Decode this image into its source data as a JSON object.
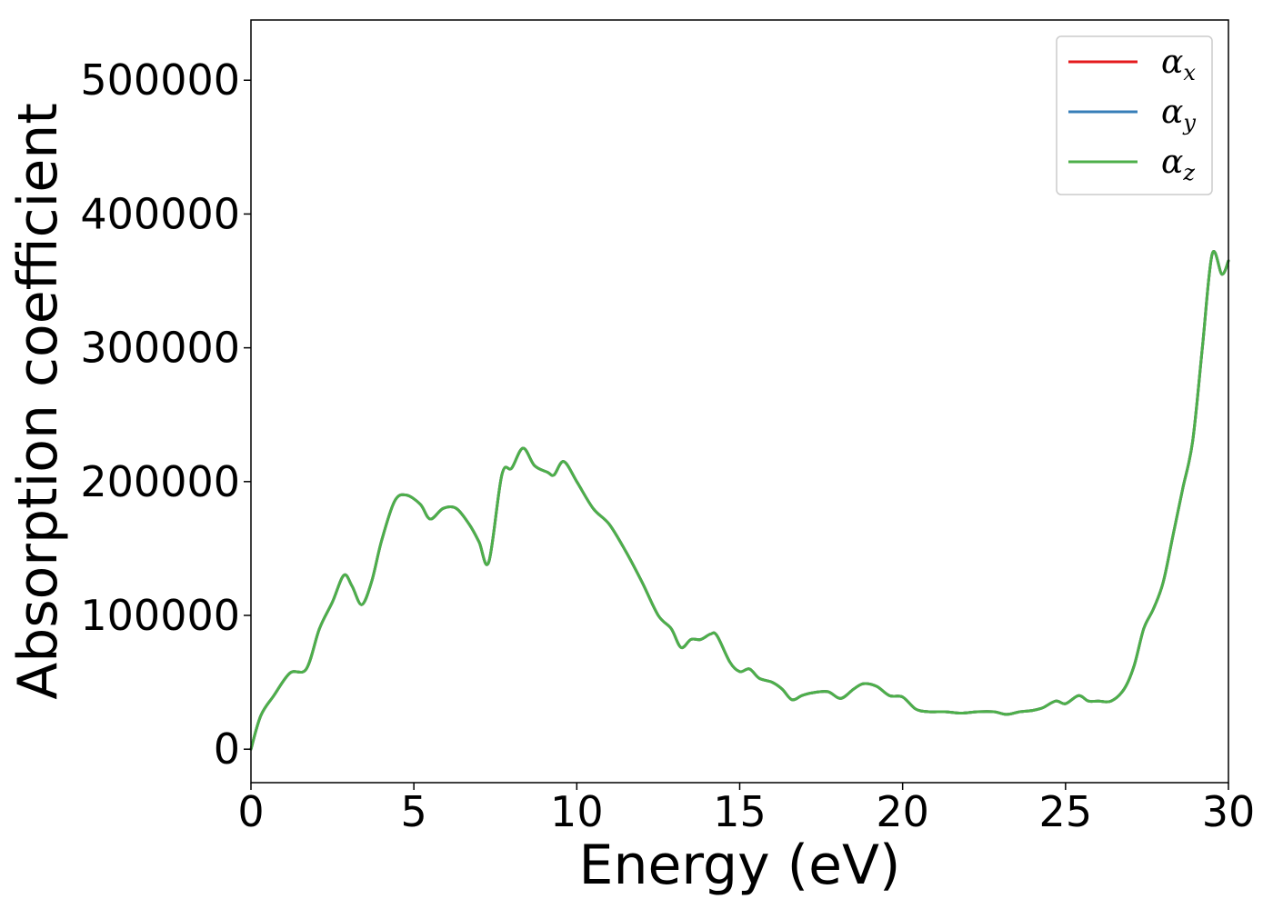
{
  "chart_data": {
    "type": "line",
    "title": "",
    "xlabel": "Energy (eV)",
    "ylabel": "Absorption coefficient",
    "xlim": [
      0,
      30
    ],
    "ylim": [
      -25000,
      545000
    ],
    "xticks": [
      0,
      5,
      10,
      15,
      20,
      25,
      30
    ],
    "xtick_labels": [
      "0",
      "5",
      "10",
      "15",
      "20",
      "25",
      "30"
    ],
    "yticks": [
      0,
      100000,
      200000,
      300000,
      400000,
      500000
    ],
    "ytick_labels": [
      "0",
      "100000",
      "200000",
      "300000",
      "400000",
      "500000"
    ],
    "grid": false,
    "legend_position": "top-right",
    "x": [
      0,
      0.3,
      0.7,
      1.2,
      1.7,
      2.1,
      2.5,
      2.85,
      3.1,
      3.4,
      3.7,
      4.0,
      4.4,
      4.75,
      5.2,
      5.5,
      5.9,
      6.3,
      6.7,
      7.0,
      7.3,
      7.7,
      8.0,
      8.35,
      8.7,
      9.1,
      9.3,
      9.6,
      10.0,
      10.5,
      11.0,
      11.5,
      12.0,
      12.5,
      12.9,
      13.2,
      13.5,
      13.8,
      14.1,
      14.3,
      14.7,
      15.0,
      15.3,
      15.6,
      16.0,
      16.3,
      16.6,
      16.9,
      17.2,
      17.7,
      18.1,
      18.5,
      18.8,
      19.2,
      19.6,
      20.0,
      20.4,
      20.8,
      21.3,
      21.8,
      22.3,
      22.8,
      23.2,
      23.6,
      24.0,
      24.3,
      24.7,
      25.0,
      25.4,
      25.7,
      26.0,
      26.4,
      26.8,
      27.1,
      27.4,
      27.7,
      28.0,
      28.3,
      28.6,
      28.9,
      29.2,
      29.5,
      29.8,
      30.0
    ],
    "series": [
      {
        "name": "αx",
        "label_base": "α",
        "label_sub": "x",
        "color": "#e41a1c",
        "values": [
          0,
          25000,
          40000,
          57000,
          60000,
          90000,
          110000,
          130000,
          122000,
          108000,
          125000,
          155000,
          185000,
          190000,
          183000,
          172000,
          180000,
          180000,
          168000,
          155000,
          140000,
          205000,
          210000,
          225000,
          212000,
          207000,
          205000,
          215000,
          200000,
          180000,
          168000,
          148000,
          125000,
          100000,
          90000,
          76000,
          82000,
          82000,
          86000,
          85000,
          65000,
          58000,
          60000,
          53000,
          50000,
          45000,
          37000,
          40000,
          42000,
          43000,
          38000,
          45000,
          49000,
          47000,
          40000,
          39000,
          30000,
          28000,
          28000,
          27000,
          28000,
          28000,
          26000,
          28000,
          29000,
          31000,
          36000,
          34000,
          40000,
          36000,
          36000,
          36000,
          45000,
          62000,
          90000,
          105000,
          125000,
          160000,
          195000,
          230000,
          300000,
          370000,
          355000,
          365000
        ]
      },
      {
        "name": "αy",
        "label_base": "α",
        "label_sub": "y",
        "color": "#377eb8",
        "values": [
          0,
          25000,
          40000,
          57000,
          60000,
          90000,
          110000,
          130000,
          122000,
          108000,
          125000,
          155000,
          185000,
          190000,
          183000,
          172000,
          180000,
          180000,
          168000,
          155000,
          140000,
          205000,
          210000,
          225000,
          212000,
          207000,
          205000,
          215000,
          200000,
          180000,
          168000,
          148000,
          125000,
          100000,
          90000,
          76000,
          82000,
          82000,
          86000,
          85000,
          65000,
          58000,
          60000,
          53000,
          50000,
          45000,
          37000,
          40000,
          42000,
          43000,
          38000,
          45000,
          49000,
          47000,
          40000,
          39000,
          30000,
          28000,
          28000,
          27000,
          28000,
          28000,
          26000,
          28000,
          29000,
          31000,
          36000,
          34000,
          40000,
          36000,
          36000,
          36000,
          45000,
          62000,
          90000,
          105000,
          125000,
          160000,
          195000,
          230000,
          300000,
          370000,
          355000,
          365000
        ]
      },
      {
        "name": "αz",
        "label_base": "α",
        "label_sub": "z",
        "color": "#4daf4a",
        "values": [
          0,
          25000,
          40000,
          57000,
          60000,
          90000,
          110000,
          130000,
          122000,
          108000,
          125000,
          155000,
          185000,
          190000,
          183000,
          172000,
          180000,
          180000,
          168000,
          155000,
          140000,
          205000,
          210000,
          225000,
          212000,
          207000,
          205000,
          215000,
          200000,
          180000,
          168000,
          148000,
          125000,
          100000,
          90000,
          76000,
          82000,
          82000,
          86000,
          85000,
          65000,
          58000,
          60000,
          53000,
          50000,
          45000,
          37000,
          40000,
          42000,
          43000,
          38000,
          45000,
          49000,
          47000,
          40000,
          39000,
          30000,
          28000,
          28000,
          27000,
          28000,
          28000,
          26000,
          28000,
          29000,
          31000,
          36000,
          34000,
          40000,
          36000,
          36000,
          36000,
          45000,
          62000,
          90000,
          105000,
          125000,
          160000,
          195000,
          230000,
          300000,
          370000,
          355000,
          365000
        ]
      }
    ]
  }
}
